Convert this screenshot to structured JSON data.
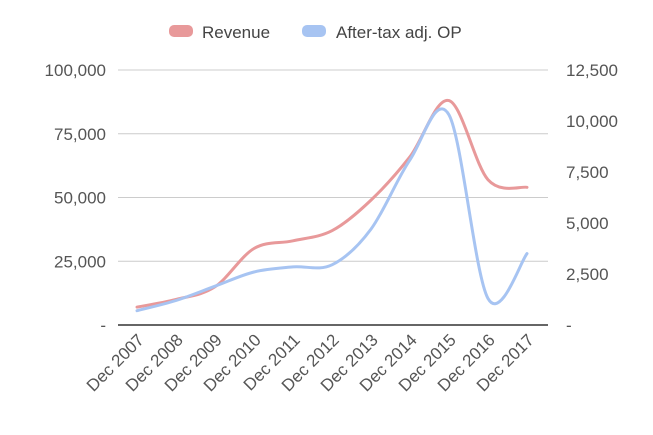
{
  "chart_data": {
    "type": "line",
    "categories": [
      "Dec 2007",
      "Dec 2008",
      "Dec 2009",
      "Dec 2010",
      "Dec 2011",
      "Dec 2012",
      "Dec 2013",
      "Dec 2014",
      "Dec 2015",
      "Dec 2016",
      "Dec 2017"
    ],
    "series": [
      {
        "name": "Revenue",
        "axis": "left",
        "color": "#e8999a",
        "values": [
          7000,
          10000,
          15000,
          30000,
          33000,
          37000,
          49000,
          66000,
          88000,
          57000,
          54000
        ]
      },
      {
        "name": "After-tax adj. OP",
        "axis": "right",
        "color": "#a7c4f2",
        "values": [
          700,
          1200,
          1900,
          2600,
          2850,
          2950,
          4700,
          8100,
          10300,
          1300,
          3500
        ]
      }
    ],
    "y_left": {
      "ylim": [
        0,
        100000
      ],
      "ticks": [
        0,
        25000,
        50000,
        75000,
        100000
      ],
      "tick_labels": [
        "-",
        "25,000",
        "50,000",
        "75,000",
        "100,000"
      ]
    },
    "y_right": {
      "ylim": [
        0,
        12500
      ],
      "ticks": [
        0,
        2500,
        5000,
        7500,
        10000,
        12500
      ],
      "tick_labels": [
        "-",
        "2,500",
        "5,000",
        "7,500",
        "10,000",
        "12,500"
      ]
    },
    "grid": true,
    "legend": "top-center",
    "title": "",
    "xlabel": "",
    "ylabel": ""
  }
}
